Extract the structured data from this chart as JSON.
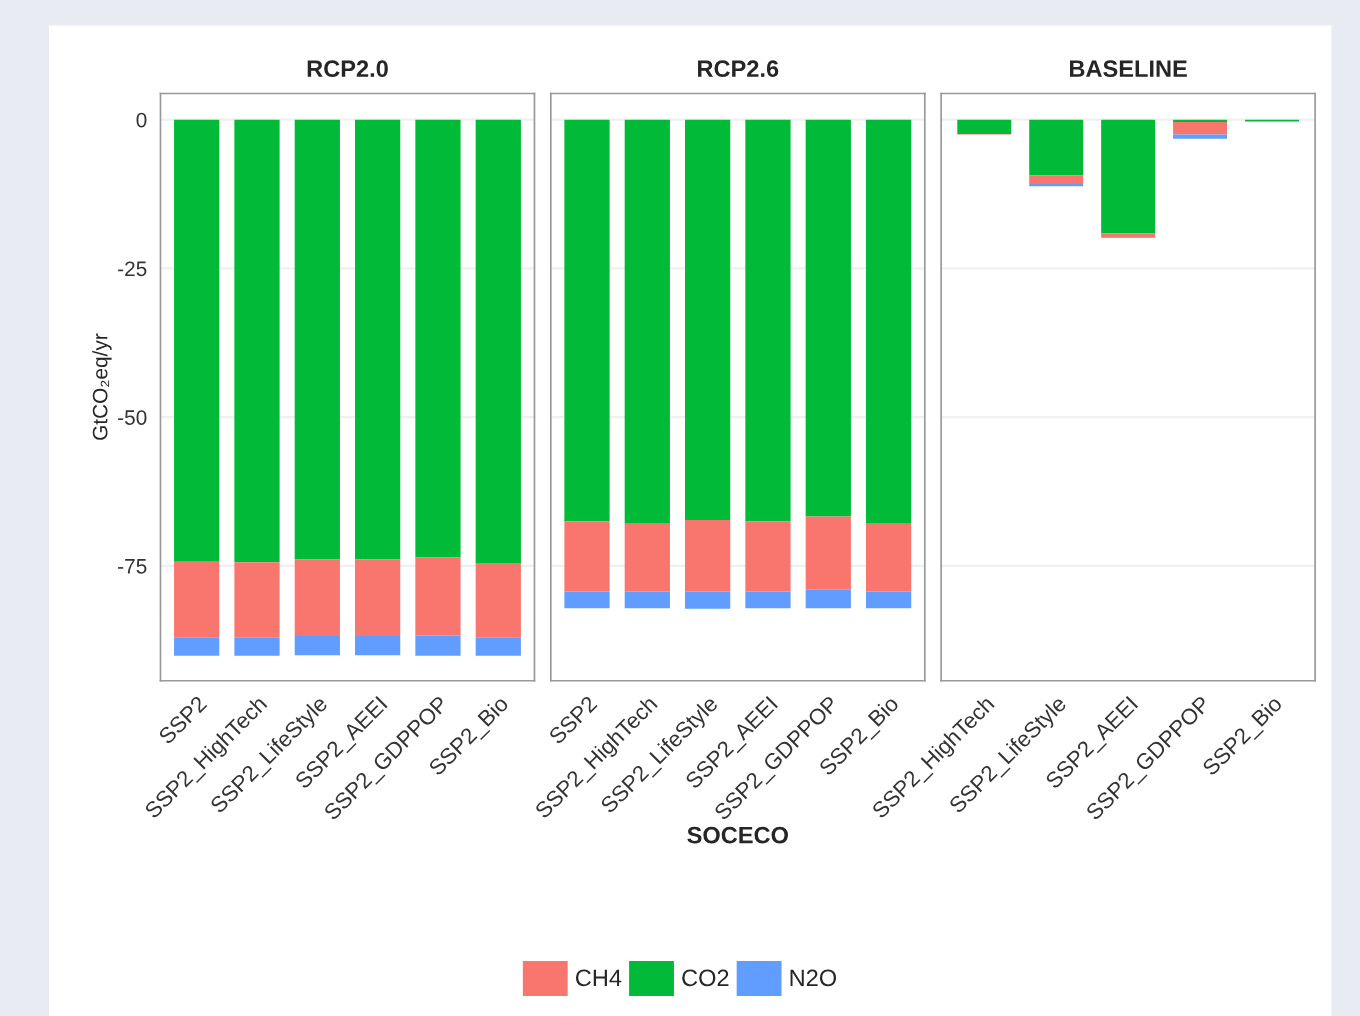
{
  "chart_data": [
    {
      "type": "bar",
      "stacked": true,
      "title": "RCP2.0",
      "ylabel": "GtCO₂eq/yr",
      "categories": [
        "SSP2",
        "SSP2_HighTech",
        "SSP2_LifeStyle",
        "SSP2_AEEI",
        "SSP2_GDPPOP",
        "SSP2_Bio"
      ],
      "ylim": [
        -94.3,
        4.4
      ],
      "yticks": [
        0,
        -25,
        -50,
        -75
      ],
      "grid": "y",
      "series": [
        {
          "color": "#00ba38",
          "values": [
            -74.3,
            -74.4,
            -73.9,
            -73.9,
            -73.6,
            -74.5
          ]
        },
        {
          "color": "#f8766d",
          "values": [
            -12.7,
            -12.6,
            -12.9,
            -12.9,
            -13.1,
            -12.5
          ]
        },
        {
          "color": "#619cff",
          "values": [
            -3.1,
            -3.1,
            -3.2,
            -3.2,
            -3.4,
            -3.1
          ]
        }
      ]
    },
    {
      "type": "bar",
      "stacked": true,
      "title": "RCP2.6",
      "xlabel": "SOCECO",
      "categories": [
        "SSP2",
        "SSP2_HighTech",
        "SSP2_LifeStyle",
        "SSP2_AEEI",
        "SSP2_GDPPOP",
        "SSP2_Bio"
      ],
      "ylim": [
        -94.3,
        4.4
      ],
      "yticks": [
        0,
        -25,
        -50,
        -75
      ],
      "grid": "y",
      "tick_labels": "x",
      "legend": "bottom",
      "series": [
        {
          "name": "CO2",
          "color": "#00ba38",
          "values": [
            -67.5,
            -67.9,
            -67.3,
            -67.5,
            -66.7,
            -67.9
          ]
        },
        {
          "name": "CH4",
          "color": "#f8766d",
          "values": [
            -11.8,
            -11.4,
            -12.0,
            -11.8,
            -12.3,
            -11.4
          ]
        },
        {
          "name": "N2O",
          "color": "#619cff",
          "values": [
            -2.8,
            -2.8,
            -2.9,
            -2.8,
            -3.1,
            -2.8
          ]
        }
      ]
    },
    {
      "type": "bar",
      "stacked": true,
      "title": "BASELINE",
      "categories": [
        "SSP2_HighTech",
        "SSP2_LifeStyle",
        "SSP2_AEEI",
        "SSP2_GDPPOP",
        "SSP2_Bio"
      ],
      "ylim": [
        -94.3,
        4.4
      ],
      "yticks": [
        0,
        -25,
        -50,
        -75
      ],
      "grid": "y",
      "tick_labels": "x",
      "series": [
        {
          "color": "#00ba38",
          "values": [
            -2.4,
            -9.4,
            -19.1,
            -0.4,
            -0.3
          ]
        },
        {
          "color": "#f8766d",
          "values": [
            -0.1,
            -1.4,
            -0.7,
            -2.1,
            0
          ]
        },
        {
          "color": "#619cff",
          "values": [
            0,
            -0.4,
            -0.1,
            -0.7,
            0
          ]
        }
      ]
    }
  ]
}
